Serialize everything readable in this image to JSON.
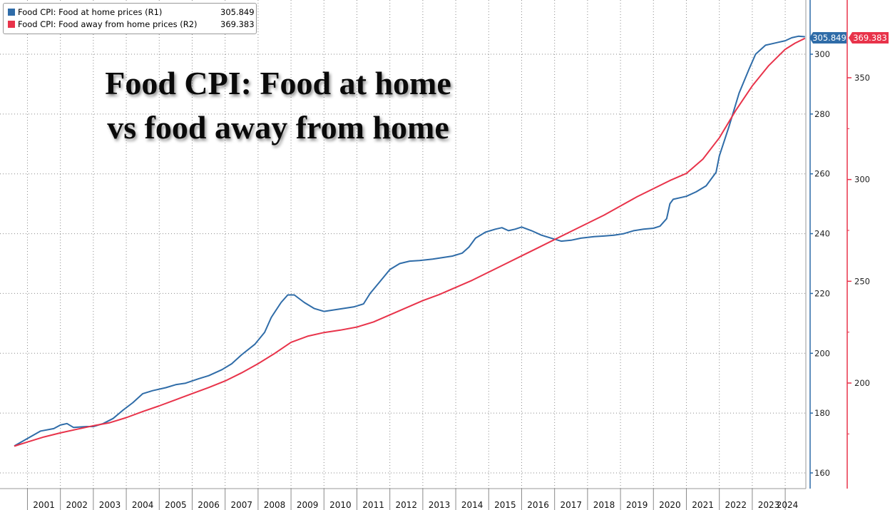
{
  "headline": {
    "line1": "Food CPI: Food at home",
    "line2": "vs food away from home"
  },
  "legend": {
    "items": [
      {
        "label": "Food CPI: Food at home prices (R1)",
        "value": "305.849",
        "color": "#2f6ca8"
      },
      {
        "label": "Food CPI: Food away from home prices (R2)",
        "value": "369.383",
        "color": "#e8334a"
      }
    ]
  },
  "chart_data": {
    "type": "line",
    "title": "Food CPI: Food at home vs food away from home",
    "x_tick_labels": [
      "2001",
      "2002",
      "2003",
      "2004",
      "2005",
      "2006",
      "2007",
      "2008",
      "2009",
      "2010",
      "2011",
      "2012",
      "2013",
      "2014",
      "2015",
      "2016",
      "2017",
      "2018",
      "2019",
      "2020",
      "2021",
      "2022",
      "2023",
      "2024"
    ],
    "axes": {
      "R1": {
        "ticks": [
          160,
          180,
          200,
          220,
          240,
          260,
          280,
          300
        ],
        "ylim": [
          158.4,
          313.5
        ],
        "color": "#2f6ca8"
      },
      "R2": {
        "ticks": [
          200,
          250,
          300,
          350
        ],
        "ylim": [
          150,
          375
        ],
        "color": "#e8334a"
      }
    },
    "last_value_tags": [
      {
        "series": "R1",
        "label": "305.849"
      },
      {
        "series": "R2",
        "label": "369.383"
      }
    ],
    "grid": true,
    "series": [
      {
        "name": "Food CPI: Food at home prices (R1)",
        "axis": "R1",
        "color": "#2f6ca8",
        "points": [
          [
            2000.6,
            169.0
          ],
          [
            2001.0,
            171.5
          ],
          [
            2001.4,
            174.0
          ],
          [
            2001.8,
            174.8
          ],
          [
            2002.0,
            176.0
          ],
          [
            2002.2,
            176.5
          ],
          [
            2002.4,
            175.2
          ],
          [
            2002.8,
            175.5
          ],
          [
            2003.0,
            175.5
          ],
          [
            2003.3,
            176.5
          ],
          [
            2003.6,
            178.2
          ],
          [
            2003.9,
            181.0
          ],
          [
            2004.2,
            183.5
          ],
          [
            2004.5,
            186.5
          ],
          [
            2004.8,
            187.5
          ],
          [
            2005.2,
            188.5
          ],
          [
            2005.5,
            189.5
          ],
          [
            2005.8,
            190.0
          ],
          [
            2006.2,
            191.5
          ],
          [
            2006.5,
            192.5
          ],
          [
            2006.9,
            194.5
          ],
          [
            2007.2,
            196.5
          ],
          [
            2007.5,
            199.5
          ],
          [
            2007.9,
            203.0
          ],
          [
            2008.2,
            207.0
          ],
          [
            2008.4,
            212.0
          ],
          [
            2008.7,
            217.0
          ],
          [
            2008.9,
            219.5
          ],
          [
            2009.1,
            219.5
          ],
          [
            2009.4,
            217.0
          ],
          [
            2009.7,
            215.0
          ],
          [
            2010.0,
            214.0
          ],
          [
            2010.3,
            214.5
          ],
          [
            2010.6,
            215.0
          ],
          [
            2010.9,
            215.5
          ],
          [
            2011.2,
            216.5
          ],
          [
            2011.4,
            220.0
          ],
          [
            2011.7,
            224.0
          ],
          [
            2012.0,
            228.0
          ],
          [
            2012.3,
            230.0
          ],
          [
            2012.6,
            230.8
          ],
          [
            2012.9,
            231.0
          ],
          [
            2013.3,
            231.5
          ],
          [
            2013.6,
            232.0
          ],
          [
            2013.9,
            232.5
          ],
          [
            2014.2,
            233.5
          ],
          [
            2014.4,
            235.5
          ],
          [
            2014.6,
            238.5
          ],
          [
            2014.9,
            240.5
          ],
          [
            2015.2,
            241.5
          ],
          [
            2015.4,
            242.0
          ],
          [
            2015.6,
            241.0
          ],
          [
            2015.8,
            241.5
          ],
          [
            2016.0,
            242.2
          ],
          [
            2016.3,
            241.0
          ],
          [
            2016.6,
            239.5
          ],
          [
            2016.9,
            238.5
          ],
          [
            2017.2,
            237.5
          ],
          [
            2017.5,
            237.8
          ],
          [
            2017.8,
            238.5
          ],
          [
            2018.2,
            239.0
          ],
          [
            2018.5,
            239.2
          ],
          [
            2018.8,
            239.5
          ],
          [
            2019.1,
            240.0
          ],
          [
            2019.4,
            241.0
          ],
          [
            2019.7,
            241.5
          ],
          [
            2020.0,
            241.8
          ],
          [
            2020.2,
            242.5
          ],
          [
            2020.4,
            245.0
          ],
          [
            2020.5,
            250.0
          ],
          [
            2020.6,
            251.5
          ],
          [
            2020.8,
            252.0
          ],
          [
            2021.0,
            252.5
          ],
          [
            2021.3,
            254.0
          ],
          [
            2021.6,
            256.0
          ],
          [
            2021.9,
            260.5
          ],
          [
            2022.0,
            266.0
          ],
          [
            2022.3,
            276.0
          ],
          [
            2022.6,
            287.0
          ],
          [
            2022.9,
            295.0
          ],
          [
            2023.1,
            300.0
          ],
          [
            2023.4,
            303.0
          ],
          [
            2023.6,
            303.5
          ],
          [
            2023.8,
            304.0
          ],
          [
            2024.0,
            304.5
          ],
          [
            2024.2,
            305.5
          ],
          [
            2024.4,
            306.0
          ],
          [
            2024.6,
            305.849
          ]
        ]
      },
      {
        "name": "Food CPI: Food away from home prices (R2)",
        "axis": "R2",
        "color": "#e8334a",
        "points": [
          [
            2000.6,
            169.0
          ],
          [
            2001.0,
            171.0
          ],
          [
            2001.5,
            173.5
          ],
          [
            2002.0,
            175.5
          ],
          [
            2002.5,
            177.3
          ],
          [
            2003.0,
            179.0
          ],
          [
            2003.5,
            180.5
          ],
          [
            2004.0,
            183.0
          ],
          [
            2004.5,
            186.0
          ],
          [
            2005.0,
            188.8
          ],
          [
            2005.5,
            191.8
          ],
          [
            2006.0,
            194.8
          ],
          [
            2006.5,
            197.8
          ],
          [
            2007.0,
            201.0
          ],
          [
            2007.5,
            205.0
          ],
          [
            2008.0,
            209.5
          ],
          [
            2008.5,
            214.5
          ],
          [
            2009.0,
            220.0
          ],
          [
            2009.5,
            223.0
          ],
          [
            2010.0,
            224.8
          ],
          [
            2010.5,
            226.0
          ],
          [
            2011.0,
            227.5
          ],
          [
            2011.5,
            230.0
          ],
          [
            2012.0,
            233.5
          ],
          [
            2012.5,
            237.0
          ],
          [
            2013.0,
            240.5
          ],
          [
            2013.5,
            243.5
          ],
          [
            2014.0,
            247.0
          ],
          [
            2014.5,
            250.5
          ],
          [
            2015.0,
            254.5
          ],
          [
            2015.5,
            258.5
          ],
          [
            2016.0,
            262.5
          ],
          [
            2016.5,
            266.5
          ],
          [
            2017.0,
            270.5
          ],
          [
            2017.5,
            274.5
          ],
          [
            2018.0,
            278.5
          ],
          [
            2018.5,
            282.5
          ],
          [
            2019.0,
            287.0
          ],
          [
            2019.5,
            291.5
          ],
          [
            2020.0,
            295.5
          ],
          [
            2020.5,
            299.5
          ],
          [
            2021.0,
            303.0
          ],
          [
            2021.5,
            310.0
          ],
          [
            2022.0,
            320.5
          ],
          [
            2022.5,
            334.0
          ],
          [
            2023.0,
            346.0
          ],
          [
            2023.5,
            356.0
          ],
          [
            2024.0,
            364.0
          ],
          [
            2024.3,
            367.0
          ],
          [
            2024.6,
            369.383
          ]
        ]
      }
    ]
  }
}
